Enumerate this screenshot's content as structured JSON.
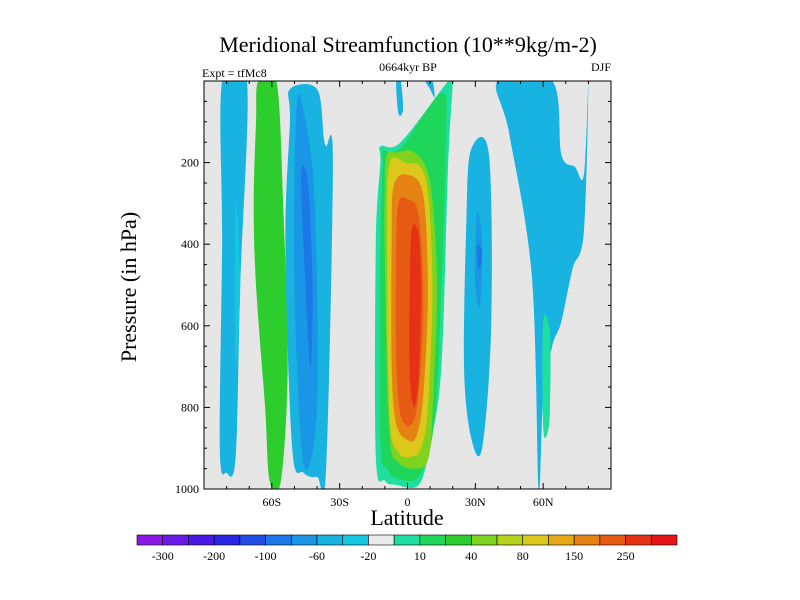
{
  "chart_data": {
    "type": "contour",
    "title": "Meridional Streamfunction (10**9kg/m-2)",
    "subtitle_left": "Expt = tfMc8",
    "subtitle_center": "0664kyr BP",
    "subtitle_right": "DJF",
    "xlabel": "Latitude",
    "ylabel": "Pressure (in hPa)",
    "xlim": [
      -90,
      90
    ],
    "ylim": [
      1000,
      0
    ],
    "x_ticks": [
      {
        "value": -60,
        "label": "60S"
      },
      {
        "value": -30,
        "label": "30S"
      },
      {
        "value": 0,
        "label": "0"
      },
      {
        "value": 30,
        "label": "30N"
      },
      {
        "value": 60,
        "label": "60N"
      }
    ],
    "y_ticks": [
      {
        "value": 200,
        "label": "200"
      },
      {
        "value": 400,
        "label": "400"
      },
      {
        "value": 600,
        "label": "600"
      },
      {
        "value": 800,
        "label": "800"
      },
      {
        "value": 1000,
        "label": "1000"
      }
    ],
    "background_color": "#e6e6e6",
    "colorbar": {
      "colors": [
        "#8a19e6",
        "#6a19e6",
        "#4a19e6",
        "#2a25e6",
        "#1f4fe6",
        "#1b78e6",
        "#1a96e6",
        "#18b3e0",
        "#14c8e0",
        "#ebebeb",
        "#1fdfa0",
        "#1ed65a",
        "#2ecd2e",
        "#7dd31e",
        "#b4d31a",
        "#dcc81a",
        "#e6aa14",
        "#e68214",
        "#e65a14",
        "#e63214",
        "#e61414"
      ],
      "labels": [
        {
          "boundary": 1,
          "text": "-300"
        },
        {
          "boundary": 3,
          "text": "-200"
        },
        {
          "boundary": 5,
          "text": "-100"
        },
        {
          "boundary": 7,
          "text": "-60"
        },
        {
          "boundary": 9,
          "text": "-20"
        },
        {
          "boundary": 11,
          "text": "10"
        },
        {
          "boundary": 13,
          "text": "40"
        },
        {
          "boundary": 15,
          "text": "80"
        },
        {
          "boundary": 17,
          "text": "150"
        },
        {
          "boundary": 19,
          "text": "250"
        }
      ]
    },
    "regions": [
      {
        "name": "cell-sh-outer",
        "color": "#18b3e0",
        "lat": [
          -82,
          -71,
          -74,
          -76,
          -80,
          -83,
          -82
        ],
        "p": [
          0,
          0,
          500,
          920,
          960,
          900,
          400
        ]
      },
      {
        "name": "cell-sh-outer-core",
        "color": "#14c8e0",
        "lat": [
          -76,
          -74,
          -76
        ],
        "p": [
          300,
          500,
          700
        ]
      },
      {
        "name": "cell-sh-positive",
        "color": "#2ecd2e",
        "lat": [
          -66,
          -58,
          -55,
          -53,
          -56,
          -61,
          -63,
          -67,
          -68,
          -67
        ],
        "p": [
          0,
          0,
          300,
          700,
          980,
          980,
          800,
          500,
          300,
          100
        ]
      },
      {
        "name": "cell-sh-neg-outer",
        "color": "#18b3e0",
        "lat": [
          -52,
          -40,
          -37,
          -36,
          -33,
          -36,
          -40,
          -46,
          -51,
          -54,
          -52
        ],
        "p": [
          20,
          20,
          140,
          160,
          200,
          950,
          970,
          960,
          900,
          400,
          100
        ]
      },
      {
        "name": "cell-sh-neg-middle",
        "color": "#1a96e6",
        "lat": [
          -49,
          -45,
          -41,
          -40,
          -46,
          -50
        ],
        "p": [
          60,
          100,
          300,
          800,
          940,
          500
        ]
      },
      {
        "name": "cell-sh-neg-inner",
        "color": "#1b78e6",
        "lat": [
          -47,
          -44,
          -42,
          -43,
          -46
        ],
        "p": [
          220,
          250,
          500,
          700,
          400
        ]
      },
      {
        "name": "cell-eq-outer",
        "color": "#1fdfa0",
        "lat": [
          -12,
          -3,
          18,
          20,
          18,
          15,
          10,
          5,
          -5,
          -10,
          -14,
          -14,
          -12
        ],
        "p": [
          160,
          150,
          0,
          0,
          200,
          700,
          890,
          990,
          990,
          980,
          920,
          400,
          200
        ]
      },
      {
        "name": "cell-eq-green",
        "color": "#1ed65a",
        "lat": [
          -11,
          -3,
          15,
          17,
          14,
          11,
          5,
          -4,
          -9,
          -12,
          -12,
          -11
        ],
        "p": [
          170,
          165,
          30,
          150,
          650,
          870,
          970,
          975,
          950,
          880,
          400,
          200
        ]
      },
      {
        "name": "cell-eq-lime",
        "color": "#7dd31e",
        "lat": [
          -9,
          -5,
          3,
          10,
          13,
          11,
          9,
          4,
          -4,
          -8,
          -10,
          -10
        ],
        "p": [
          180,
          175,
          175,
          250,
          500,
          820,
          930,
          950,
          935,
          860,
          450,
          250
        ]
      },
      {
        "name": "cell-eq-yellow",
        "color": "#dcc81a",
        "lat": [
          -8,
          -1,
          8,
          11,
          9,
          6,
          2,
          -4,
          -8,
          -9
        ],
        "p": [
          205,
          200,
          240,
          500,
          800,
          900,
          920,
          910,
          820,
          400
        ]
      },
      {
        "name": "cell-eq-orange",
        "color": "#e68214",
        "lat": [
          -6,
          0,
          7,
          9,
          7,
          4,
          0,
          -5,
          -7,
          -7
        ],
        "p": [
          255,
          230,
          280,
          520,
          770,
          870,
          880,
          840,
          700,
          380
        ]
      },
      {
        "name": "cell-eq-deep-orange",
        "color": "#e65a14",
        "lat": [
          -4,
          0,
          5,
          7,
          5,
          2,
          -3,
          -5,
          -5
        ],
        "p": [
          300,
          290,
          330,
          550,
          760,
          840,
          820,
          680,
          420
        ]
      },
      {
        "name": "cell-eq-red",
        "color": "#e63214",
        "lat": [
          2,
          5,
          6,
          5,
          3,
          1,
          1
        ],
        "p": [
          360,
          380,
          520,
          720,
          800,
          720,
          500
        ]
      },
      {
        "name": "cell-top-eq-spike",
        "color": "#18b3e0",
        "lat": [
          -5,
          -3,
          -2,
          -4
        ],
        "p": [
          0,
          0,
          70,
          80
        ]
      },
      {
        "name": "cell-top-eq-spike-right",
        "color": "#18b3e0",
        "lat": [
          8,
          11,
          12,
          10
        ],
        "p": [
          0,
          0,
          40,
          20
        ]
      },
      {
        "name": "cell-nh-neg",
        "color": "#18b3e0",
        "lat": [
          28,
          36,
          37,
          33,
          28,
          25,
          26
        ],
        "p": [
          170,
          180,
          600,
          900,
          870,
          700,
          350
        ]
      },
      {
        "name": "cell-nh-neg-core",
        "color": "#1a96e6",
        "lat": [
          31,
          33,
          32,
          30,
          30
        ],
        "p": [
          320,
          400,
          550,
          500,
          400
        ]
      },
      {
        "name": "cell-nh-dark-dot",
        "color": "#1b78e6",
        "lat": [
          31,
          33,
          32,
          31
        ],
        "p": [
          400,
          420,
          460,
          450
        ]
      },
      {
        "name": "cell-nh-right",
        "color": "#18b3e0",
        "lat": [
          40,
          64,
          68,
          74,
          78,
          80,
          78,
          73,
          68,
          64,
          60,
          58,
          55,
          45
        ],
        "p": [
          0,
          0,
          180,
          210,
          230,
          0,
          370,
          460,
          590,
          650,
          780,
          1000,
          480,
          130
        ]
      },
      {
        "name": "cell-nh-green",
        "color": "#1fdfa0",
        "lat": [
          60,
          63,
          63,
          62,
          60
        ],
        "p": [
          590,
          620,
          800,
          860,
          850
        ]
      }
    ]
  }
}
